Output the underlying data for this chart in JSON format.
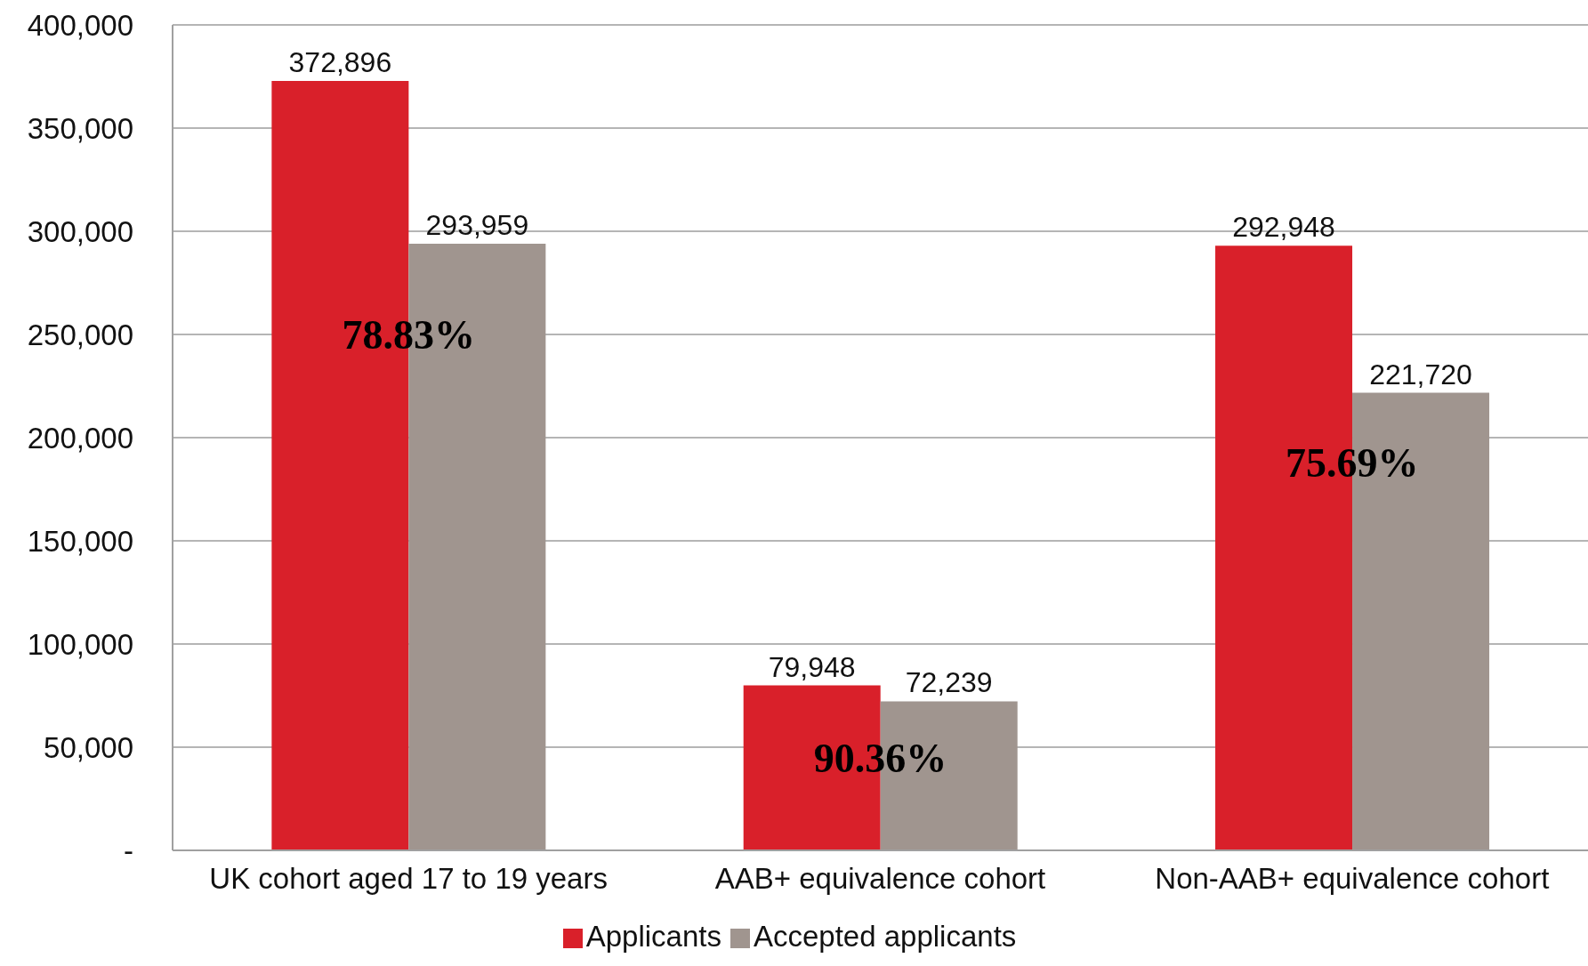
{
  "chart_data": {
    "type": "bar",
    "categories": [
      "UK cohort aged 17 to 19 years",
      "AAB+ equivalence cohort",
      "Non-AAB+ equivalence cohort"
    ],
    "series": [
      {
        "name": "Applicants",
        "color": "#d9202a",
        "values": [
          372896,
          79948,
          292948
        ],
        "value_labels": [
          "372,896",
          "79,948",
          "292,948"
        ]
      },
      {
        "name": "Accepted applicants",
        "color": "#a0958f",
        "values": [
          293959,
          72239,
          221720
        ],
        "value_labels": [
          "293,959",
          "72,239",
          "221,720"
        ]
      }
    ],
    "ylim": [
      0,
      400000
    ],
    "yticks": [
      {
        "value": 0,
        "label": "-"
      },
      {
        "value": 50000,
        "label": "50,000"
      },
      {
        "value": 100000,
        "label": "100,000"
      },
      {
        "value": 150000,
        "label": "150,000"
      },
      {
        "value": 200000,
        "label": "200,000"
      },
      {
        "value": 250000,
        "label": "250,000"
      },
      {
        "value": 300000,
        "label": "300,000"
      },
      {
        "value": 350000,
        "label": "350,000"
      },
      {
        "value": 400000,
        "label": "400,000"
      }
    ],
    "annotations": [
      {
        "text": "78.83%",
        "x": "UK cohort aged 17 to 19 years",
        "y": 250000
      },
      {
        "text": "90.36%",
        "x": "AAB+ equivalence cohort",
        "y": 45000
      },
      {
        "text": "75.69%",
        "x": "Non-AAB+ equivalence cohort",
        "y": 188000
      }
    ],
    "grid": "y",
    "legend": "bottom"
  }
}
